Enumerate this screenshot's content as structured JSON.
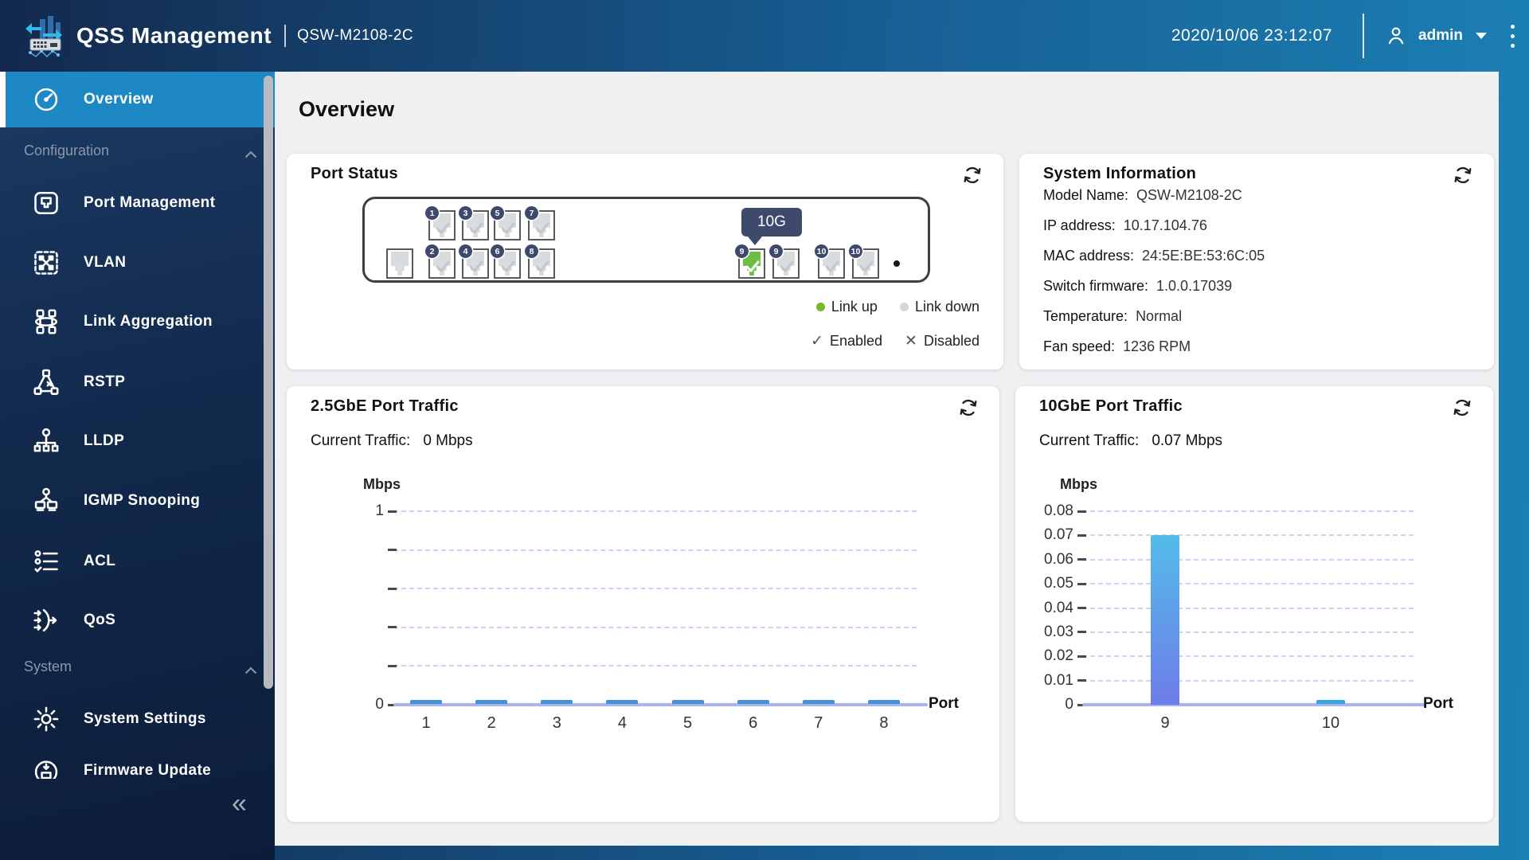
{
  "header": {
    "app_title": "QSS Management",
    "model": "QSW-M2108-2C",
    "datetime": "2020/10/06  23:12:07",
    "user": "admin"
  },
  "page": {
    "title": "Overview"
  },
  "sidebar": {
    "collapse_glyph": "«",
    "items": [
      {
        "label": "Overview",
        "icon": "gauge-icon",
        "active": true
      },
      {
        "type": "section",
        "label": "Configuration"
      },
      {
        "label": "Port Management",
        "icon": "port-icon"
      },
      {
        "label": "VLAN",
        "icon": "vlan-icon"
      },
      {
        "label": "Link Aggregation",
        "icon": "link-aggregation-icon"
      },
      {
        "label": "RSTP",
        "icon": "rstp-icon"
      },
      {
        "label": "LLDP",
        "icon": "lldp-icon"
      },
      {
        "label": "IGMP Snooping",
        "icon": "igmp-icon"
      },
      {
        "label": "ACL",
        "icon": "acl-icon"
      },
      {
        "label": "QoS",
        "icon": "qos-icon"
      },
      {
        "type": "section",
        "label": "System"
      },
      {
        "label": "System Settings",
        "icon": "gear-icon"
      },
      {
        "label": "Firmware Update",
        "icon": "firmware-icon"
      }
    ]
  },
  "port_status": {
    "title": "Port Status",
    "tooltip": "10G",
    "top_row": [
      {
        "n": "1"
      },
      {
        "n": "3"
      },
      {
        "n": "5"
      },
      {
        "n": "7"
      }
    ],
    "bottom_row": [
      {
        "blank": true
      },
      {
        "n": "2"
      },
      {
        "n": "4"
      },
      {
        "n": "6"
      },
      {
        "n": "8"
      },
      {
        "n": "9",
        "up": true
      },
      {
        "n": "9"
      },
      {
        "n": "10"
      },
      {
        "n": "10"
      }
    ],
    "legend_link": [
      {
        "label": "Link up",
        "color": "#76b82a"
      },
      {
        "label": "Link down",
        "color": "#d2d5d9"
      }
    ],
    "legend_state": [
      {
        "symbol": "✓",
        "label": "Enabled"
      },
      {
        "symbol": "✕",
        "label": "Disabled"
      }
    ]
  },
  "system_info": {
    "title": "System Information",
    "rows": [
      {
        "label": "Model Name:",
        "value": "QSW-M2108-2C"
      },
      {
        "label": "IP address:",
        "value": "10.17.104.76"
      },
      {
        "label": "MAC address:",
        "value": "24:5E:BE:53:6C:05"
      },
      {
        "label": "Switch firmware:",
        "value": "1.0.0.17039"
      },
      {
        "label": "Temperature:",
        "value": "Normal"
      },
      {
        "label": "Fan speed:",
        "value": "1236 RPM"
      }
    ]
  },
  "colors": {
    "accent_blue": "#1e88c4",
    "badge_navy": "#3d4a6b",
    "link_up_green": "#76b82a"
  },
  "chart_data": [
    {
      "type": "bar",
      "title": "2.5GbE Port Traffic",
      "current_label": "Current Traffic:",
      "current_value": "0 Mbps",
      "ylabel": "Mbps",
      "xlabel": "Port",
      "categories": [
        "1",
        "2",
        "3",
        "4",
        "5",
        "6",
        "7",
        "8"
      ],
      "values": [
        0,
        0,
        0,
        0,
        0,
        0,
        0,
        0
      ],
      "ylim": [
        0,
        1
      ],
      "yticks": [
        {
          "value": 1,
          "label": "1"
        },
        {
          "value": 0.8,
          "label": ""
        },
        {
          "value": 0.6,
          "label": ""
        },
        {
          "value": 0.4,
          "label": ""
        },
        {
          "value": 0.2,
          "label": ""
        },
        {
          "value": 0,
          "label": "0"
        }
      ],
      "grid": "dashed",
      "zero_bar_color": "#4392d6",
      "bar_gradient": [
        "#53bce9",
        "#6e7ce9"
      ]
    },
    {
      "type": "bar",
      "title": "10GbE Port Traffic",
      "current_label": "Current Traffic:",
      "current_value": "0.07 Mbps",
      "ylabel": "Mbps",
      "xlabel": "Port",
      "categories": [
        "9",
        "10"
      ],
      "values": [
        0.07,
        0
      ],
      "ylim": [
        0,
        0.08
      ],
      "yticks": [
        {
          "value": 0.08,
          "label": "0.08"
        },
        {
          "value": 0.07,
          "label": "0.07"
        },
        {
          "value": 0.06,
          "label": "0.06"
        },
        {
          "value": 0.05,
          "label": "0.05"
        },
        {
          "value": 0.04,
          "label": "0.04"
        },
        {
          "value": 0.03,
          "label": "0.03"
        },
        {
          "value": 0.02,
          "label": "0.02"
        },
        {
          "value": 0.01,
          "label": "0.01"
        },
        {
          "value": 0,
          "label": "0"
        }
      ],
      "grid": "dashed",
      "zero_bar_color": "#35a6dd",
      "bar_gradient": [
        "#53bce9",
        "#6e7ce9"
      ]
    }
  ]
}
